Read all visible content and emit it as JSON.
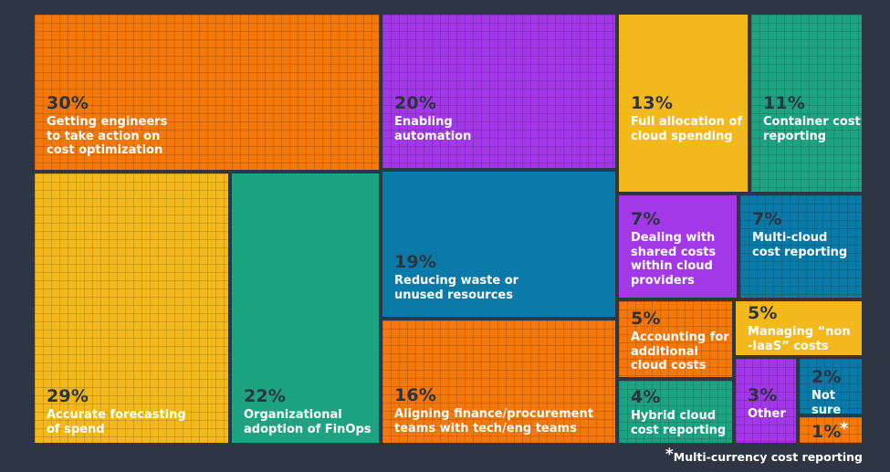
{
  "colors": {
    "background": "#2d3642",
    "orange": "#f5780a",
    "purple": "#a338e8",
    "yellow": "#f2b81c",
    "teal": "#1ea382",
    "blue": "#0a7aa8"
  },
  "chart_data": {
    "type": "treemap",
    "items": [
      {
        "id": "engineers",
        "value": 30,
        "pct": "30%",
        "label": "Getting engineers\nto take action on\ncost optimization",
        "color": "orange",
        "texture": "grid"
      },
      {
        "id": "forecasting",
        "value": 29,
        "pct": "29%",
        "label": "Accurate forecasting\nof spend",
        "color": "yellow",
        "texture": "grid"
      },
      {
        "id": "adoption",
        "value": 22,
        "pct": "22%",
        "label": "Organizational\nadoption of FinOps",
        "color": "teal",
        "texture": "plain"
      },
      {
        "id": "automation",
        "value": 20,
        "pct": "20%",
        "label": "Enabling\nautomation",
        "color": "purple",
        "texture": "grid"
      },
      {
        "id": "waste",
        "value": 19,
        "pct": "19%",
        "label": "Reducing waste or\nunused resources",
        "color": "blue",
        "texture": "plain"
      },
      {
        "id": "aligning",
        "value": 16,
        "pct": "16%",
        "label": "Aligning finance/procurement\nteams with tech/eng teams",
        "color": "orange",
        "texture": "grid"
      },
      {
        "id": "allocation",
        "value": 13,
        "pct": "13%",
        "label": "Full allocation of\ncloud spending",
        "color": "yellow",
        "texture": "plain"
      },
      {
        "id": "container",
        "value": 11,
        "pct": "11%",
        "label": "Container cost\nreporting",
        "color": "teal",
        "texture": "grid"
      },
      {
        "id": "shared",
        "value": 7,
        "pct": "7%",
        "label": "Dealing with\nshared costs\nwithin cloud\nproviders",
        "color": "purple",
        "texture": "plain"
      },
      {
        "id": "multicloud",
        "value": 7,
        "pct": "7%",
        "label": "Multi-cloud\ncost reporting",
        "color": "blue",
        "texture": "grid"
      },
      {
        "id": "accounting",
        "value": 5,
        "pct": "5%",
        "label": "Accounting for\nadditional\ncloud costs",
        "color": "orange",
        "texture": "grid"
      },
      {
        "id": "noniaas",
        "value": 5,
        "pct": "5%",
        "label": "Managing “non\n-IaaS” costs",
        "color": "yellow",
        "texture": "plain"
      },
      {
        "id": "hybrid",
        "value": 4,
        "pct": "4%",
        "label": "Hybrid cloud\ncost reporting",
        "color": "teal",
        "texture": "grid"
      },
      {
        "id": "other",
        "value": 3,
        "pct": "3%",
        "label": "Other",
        "color": "purple",
        "texture": "grid"
      },
      {
        "id": "notsure",
        "value": 2,
        "pct": "2%",
        "label": "Not sure",
        "color": "blue",
        "texture": "grid"
      },
      {
        "id": "multicurrency",
        "value": 1,
        "pct": "1%",
        "label": "*",
        "color": "orange",
        "texture": "grid"
      }
    ],
    "footnote": {
      "marker": "*",
      "text": "Multi-currency cost reporting"
    }
  }
}
